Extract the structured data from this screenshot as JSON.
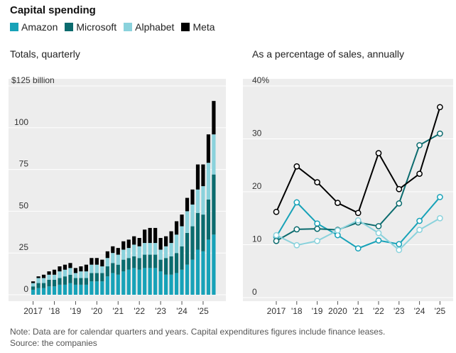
{
  "title": "Capital spending",
  "legend": [
    {
      "name": "Amazon",
      "color": "#17a2b8"
    },
    {
      "name": "Microsoft",
      "color": "#0b6b6e"
    },
    {
      "name": "Alphabet",
      "color": "#8ad2dc"
    },
    {
      "name": "Meta",
      "color": "#000000"
    }
  ],
  "note": "Note: Data are for calendar quarters and years. Capital expenditures figures include finance leases.",
  "source": "Source: the companies",
  "chart_data": [
    {
      "type": "bar",
      "subtitle": "Totals, quarterly",
      "stacked": true,
      "ylim": [
        0,
        125
      ],
      "yticks": [
        {
          "value": 0,
          "label": "0"
        },
        {
          "value": 25,
          "label": "25"
        },
        {
          "value": 50,
          "label": "50"
        },
        {
          "value": 75,
          "label": "75"
        },
        {
          "value": 100,
          "label": "100"
        },
        {
          "value": 125,
          "label": "$125 billion"
        }
      ],
      "xticks": [
        {
          "index": 0,
          "label": "2017"
        },
        {
          "index": 4,
          "label": "'18"
        },
        {
          "index": 8,
          "label": "'19"
        },
        {
          "index": 12,
          "label": "'20"
        },
        {
          "index": 16,
          "label": "'21"
        },
        {
          "index": 20,
          "label": "'22"
        },
        {
          "index": 24,
          "label": "'23"
        },
        {
          "index": 28,
          "label": "'24"
        },
        {
          "index": 32,
          "label": "'25"
        }
      ],
      "categories": [
        "2017 Q1",
        "2017 Q2",
        "2017 Q3",
        "2017 Q4",
        "2018 Q1",
        "2018 Q2",
        "2018 Q3",
        "2018 Q4",
        "2019 Q1",
        "2019 Q2",
        "2019 Q3",
        "2019 Q4",
        "2020 Q1",
        "2020 Q2",
        "2020 Q3",
        "2020 Q4",
        "2021 Q1",
        "2021 Q2",
        "2021 Q3",
        "2021 Q4",
        "2022 Q1",
        "2022 Q2",
        "2022 Q3",
        "2022 Q4",
        "2023 Q1",
        "2023 Q2",
        "2023 Q3",
        "2023 Q4",
        "2024 Q1",
        "2024 Q2",
        "2024 Q3",
        "2024 Q4",
        "2025 Q1",
        "2025 Q2",
        "2025 Q3"
      ],
      "series": [
        {
          "name": "Amazon",
          "color": "#17a2b8",
          "values": [
            3,
            4,
            4,
            5,
            5,
            6,
            6,
            7,
            6,
            6,
            6,
            8,
            8,
            8,
            11,
            13,
            12,
            14,
            15,
            16,
            15,
            16,
            16,
            16,
            14,
            12,
            12,
            13,
            15,
            18,
            21,
            27,
            26,
            33,
            36
          ]
        },
        {
          "name": "Microsoft",
          "color": "#0b6b6e",
          "values": [
            2,
            3,
            3,
            4,
            4,
            4,
            5,
            5,
            4,
            4,
            4,
            5,
            5,
            5,
            6,
            6,
            6,
            7,
            7,
            7,
            7,
            8,
            8,
            8,
            7,
            10,
            11,
            12,
            14,
            19,
            20,
            22,
            22,
            24,
            36
          ]
        },
        {
          "name": "Alphabet",
          "color": "#8ad2dc",
          "values": [
            2,
            3,
            3,
            3,
            3,
            4,
            4,
            4,
            3,
            4,
            4,
            5,
            5,
            4,
            5,
            6,
            6,
            6,
            6,
            7,
            7,
            7,
            7,
            7,
            6,
            7,
            8,
            11,
            12,
            13,
            13,
            14,
            17,
            22,
            24
          ]
        },
        {
          "name": "Meta",
          "color": "#000000",
          "values": [
            1,
            1,
            2,
            2,
            3,
            3,
            3,
            3,
            3,
            3,
            4,
            4,
            4,
            4,
            4,
            4,
            4,
            5,
            5,
            5,
            5,
            8,
            9,
            9,
            7,
            6,
            7,
            8,
            7,
            8,
            9,
            15,
            13,
            17,
            20
          ]
        }
      ]
    },
    {
      "type": "line",
      "subtitle": "As a percentage of sales, annually",
      "ylim": [
        0,
        40
      ],
      "yticks": [
        {
          "value": 0,
          "label": "0"
        },
        {
          "value": 10,
          "label": "10"
        },
        {
          "value": 20,
          "label": "20"
        },
        {
          "value": 30,
          "label": "30"
        },
        {
          "value": 40,
          "label": "40%"
        }
      ],
      "x": [
        "2017",
        "'18",
        "'19",
        "2020",
        "'21",
        "'22",
        "'23",
        "'24",
        "'25"
      ],
      "series": [
        {
          "name": "Amazon",
          "color": "#17a2b8",
          "values": [
            11.5,
            18,
            14,
            11.8,
            9.3,
            10.8,
            10.1,
            14.5,
            19
          ]
        },
        {
          "name": "Microsoft",
          "color": "#0b6b6e",
          "values": [
            10.7,
            12.9,
            13,
            12.8,
            14.2,
            13.5,
            17.8,
            28.8,
            31
          ]
        },
        {
          "name": "Alphabet",
          "color": "#8ad2dc",
          "values": [
            11.8,
            9.9,
            10.7,
            12.7,
            14.6,
            12.2,
            9,
            12.8,
            15
          ]
        },
        {
          "name": "Meta",
          "color": "#000000",
          "values": [
            16.2,
            24.8,
            21.8,
            17.9,
            16,
            27.3,
            20.5,
            23.4,
            36
          ]
        }
      ]
    }
  ]
}
